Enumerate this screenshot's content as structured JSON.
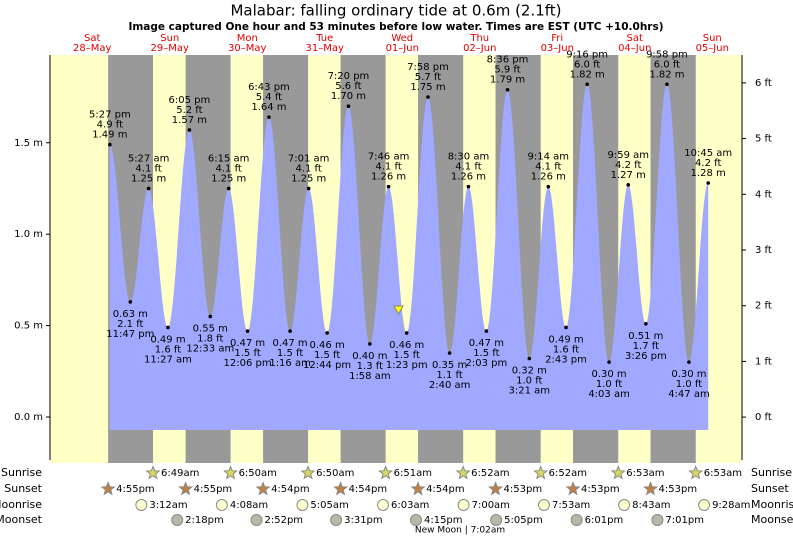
{
  "chart_data": {
    "type": "tide",
    "title": "Malabar: falling  ordinary tide at 0.6m (2.1ft)",
    "subtitle": "Image captured One hour and 53 minutes before low water. Times are EST (UTC +10.0hrs)",
    "categories": [
      "Sat",
      "Sun",
      "Mon",
      "Tue",
      "Wed",
      "Thu",
      "Fri",
      "Sat",
      "Sun"
    ],
    "dates": [
      "28–May",
      "29–May",
      "30–May",
      "31–May",
      "01–Jun",
      "02–Jun",
      "03–Jun",
      "04–Jun",
      "05–Jun"
    ],
    "x": [
      "5:27 pm",
      "11:47 pm",
      "5:27 am",
      "11:27 am",
      "6:05 pm",
      "12:33 am",
      "6:15 am",
      "12:06 pm",
      "6:43 pm",
      "1:16 am",
      "7:01 am",
      "12:44 pm",
      "7:20 pm",
      "1:58 am",
      "7:46 am",
      "1:23 pm",
      "7:58 pm",
      "2:40 am",
      "8:30 am",
      "2:03 pm",
      "8:36 pm",
      "3:21 am",
      "9:14 am",
      "2:43 pm",
      "9:16 pm",
      "4:03 am",
      "9:59 am",
      "3:26 pm",
      "9:58 pm",
      "4:47 am",
      "10:45 am"
    ],
    "values": [
      1.49,
      0.63,
      1.25,
      0.49,
      1.57,
      0.55,
      1.25,
      0.47,
      1.64,
      0.47,
      1.25,
      0.46,
      1.7,
      0.4,
      1.26,
      0.46,
      1.75,
      0.35,
      1.26,
      0.47,
      1.79,
      0.32,
      1.26,
      0.49,
      1.82,
      0.3,
      1.27,
      0.51,
      1.82,
      0.3,
      1.28
    ],
    "value_labels": [
      "1.49 m",
      "0.63 m",
      "1.25 m",
      "0.49 m",
      "1.57 m",
      "0.55 m",
      "1.25 m",
      "0.47 m",
      "1.64 m",
      "0.47 m",
      "1.25 m",
      "0.46 m",
      "1.70 m",
      "0.40 m",
      "1.26 m",
      "0.46 m",
      "1.75 m",
      "0.35 m",
      "1.26 m",
      "0.47 m",
      "1.79 m",
      "0.32 m",
      "1.26 m",
      "0.49 m",
      "1.82 m",
      "0.30 m",
      "1.27 m",
      "0.51 m",
      "1.82 m",
      "0.30 m",
      "1.28 m"
    ],
    "ft_labels": [
      "4.9 ft",
      "2.1 ft",
      "4.1 ft",
      "1.6 ft",
      "5.2 ft",
      "1.8 ft",
      "4.1 ft",
      "1.5 ft",
      "5.4 ft",
      "1.5 ft",
      "4.1 ft",
      "1.5 ft",
      "5.6 ft",
      "1.3 ft",
      "4.1 ft",
      "1.5 ft",
      "5.7 ft",
      "1.1 ft",
      "4.1 ft",
      "1.5 ft",
      "5.9 ft",
      "1.0 ft",
      "4.1 ft",
      "1.6 ft",
      "6.0 ft",
      "1.0 ft",
      "4.2 ft",
      "1.7 ft",
      "6.0 ft",
      "1.0 ft",
      "4.2 ft"
    ],
    "color": "#a0a8ff",
    "ylim": [
      -0.235,
      1.98
    ],
    "yticks": [
      {
        "value": 0,
        "label": "0.0 m"
      },
      {
        "value": 0.5,
        "label": "0.5 m"
      },
      {
        "value": 1,
        "label": "1.0 m"
      },
      {
        "value": 1.5,
        "label": "1.5 m"
      }
    ],
    "y2lim": [
      -0.77,
      6.5
    ],
    "y2ticks": [
      {
        "value": 0,
        "label": "0 ft"
      },
      {
        "value": 1,
        "label": "1 ft"
      },
      {
        "value": 2,
        "label": "2 ft"
      },
      {
        "value": 3,
        "label": "3 ft"
      },
      {
        "value": 4,
        "label": "4 ft"
      },
      {
        "value": 5,
        "label": "5 ft"
      },
      {
        "value": 6,
        "label": "6 ft"
      }
    ],
    "rows": {
      "sunrise": {
        "label": "Sunrise",
        "times": [
          "6:49am",
          "6:50am",
          "6:50am",
          "6:51am",
          "6:52am",
          "6:52am",
          "6:53am",
          "6:53am"
        ]
      },
      "sunset": {
        "label": "Sunset",
        "times": [
          "4:55pm",
          "4:55pm",
          "4:54pm",
          "4:54pm",
          "4:54pm",
          "4:53pm",
          "4:53pm",
          "4:53pm"
        ]
      },
      "moonrise": {
        "label": "Moonrise",
        "times": [
          "3:12am",
          "4:08am",
          "5:05am",
          "6:03am",
          "7:00am",
          "7:53am",
          "8:43am",
          "9:28am"
        ]
      },
      "moonset": {
        "label": "Moonset",
        "times": [
          "2:18pm",
          "2:52pm",
          "3:31pm",
          "4:15pm",
          "5:05pm",
          "6:01pm",
          "7:01pm"
        ]
      }
    },
    "new_moon": "New Moon | 7:02am"
  }
}
